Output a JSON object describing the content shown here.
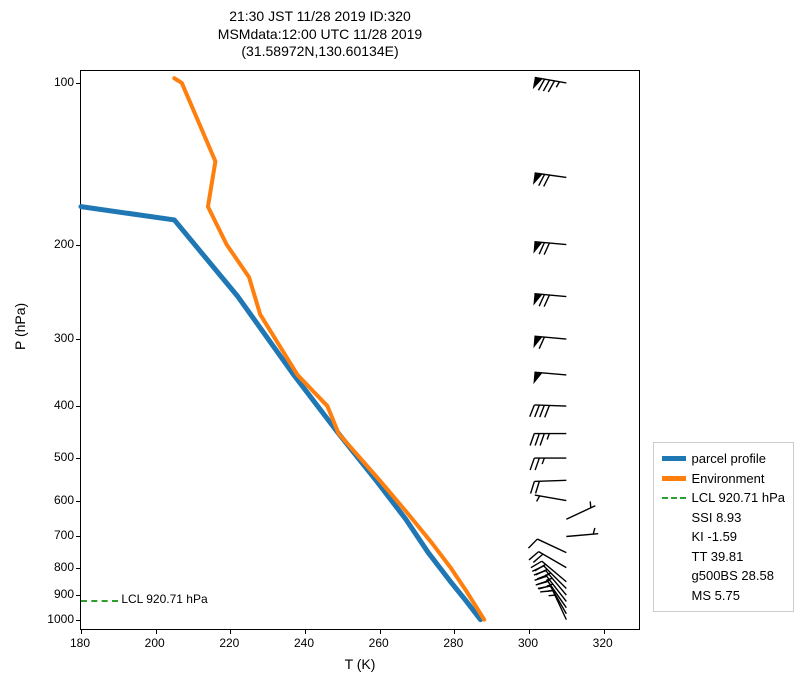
{
  "title": {
    "line1": "21:30 JST 11/28 2019  ID:320",
    "line2": "MSMdata:12:00 UTC 11/28 2019",
    "line3": "(31.58972N,130.60134E)"
  },
  "axes": {
    "xlabel": "T (K)",
    "ylabel": "P (hPa)",
    "xlim": [
      180,
      330
    ],
    "ylim": [
      1050,
      95
    ],
    "xticks": [
      180,
      200,
      220,
      240,
      260,
      280,
      300,
      320
    ],
    "yticks": [
      100,
      200,
      300,
      400,
      500,
      600,
      700,
      800,
      900,
      1000
    ],
    "yscale": "log"
  },
  "colors": {
    "parcel": "#1f77b4",
    "environment": "#ff7f0e",
    "lcl": "#2ca02c",
    "text": "#000000",
    "background": "#ffffff",
    "legend_border": "#cccccc",
    "axis": "#000000",
    "barb": "#000000"
  },
  "line_widths": {
    "parcel": 5,
    "environment": 4,
    "lcl": 2
  },
  "series": {
    "parcel": {
      "t": [
        287,
        283,
        279,
        273,
        267,
        259,
        249,
        237,
        222,
        205,
        180
      ],
      "p": [
        1000,
        920,
        850,
        750,
        650,
        550,
        450,
        350,
        250,
        180,
        170
      ]
    },
    "environment": {
      "t": [
        288,
        286,
        283,
        279,
        274,
        268,
        260,
        249,
        246,
        238,
        228,
        225,
        219,
        214,
        216,
        207,
        205
      ],
      "p": [
        1000,
        950,
        880,
        800,
        720,
        640,
        550,
        450,
        400,
        350,
        270,
        230,
        200,
        170,
        140,
        100,
        98
      ]
    }
  },
  "lcl": {
    "pressure": 920.71,
    "label": "LCL 920.71 hPa",
    "xrange": [
      180,
      190
    ]
  },
  "legend": {
    "items": [
      {
        "kind": "line",
        "color": "#1f77b4",
        "thick": true,
        "label": "parcel profile"
      },
      {
        "kind": "line",
        "color": "#ff7f0e",
        "thick": true,
        "label": "Environment"
      },
      {
        "kind": "dashed",
        "color": "#2ca02c",
        "label": "LCL 920.71 hPa"
      },
      {
        "kind": "text",
        "label": "SSI 8.93"
      },
      {
        "kind": "text",
        "label": "KI -1.59"
      },
      {
        "kind": "text",
        "label": "TT 39.81"
      },
      {
        "kind": "text",
        "label": "g500BS 28.58"
      },
      {
        "kind": "text",
        "label": "MS 5.75"
      }
    ]
  },
  "wind_barbs": {
    "x": 310,
    "levels": [
      {
        "p": 1000,
        "dir": 335,
        "spd": 13
      },
      {
        "p": 975,
        "dir": 330,
        "spd": 17
      },
      {
        "p": 950,
        "dir": 325,
        "spd": 21
      },
      {
        "p": 925,
        "dir": 322,
        "spd": 24
      },
      {
        "p": 900,
        "dir": 320,
        "spd": 27
      },
      {
        "p": 875,
        "dir": 315,
        "spd": 26
      },
      {
        "p": 850,
        "dir": 310,
        "spd": 22
      },
      {
        "p": 800,
        "dir": 300,
        "spd": 18
      },
      {
        "p": 750,
        "dir": 295,
        "spd": 11
      },
      {
        "p": 700,
        "dir": 85,
        "spd": 4
      },
      {
        "p": 650,
        "dir": 65,
        "spd": 7
      },
      {
        "p": 600,
        "dir": 280,
        "spd": 6
      },
      {
        "p": 550,
        "dir": 268,
        "spd": 20
      },
      {
        "p": 500,
        "dir": 270,
        "spd": 27
      },
      {
        "p": 450,
        "dir": 270,
        "spd": 35
      },
      {
        "p": 400,
        "dir": 272,
        "spd": 42
      },
      {
        "p": 350,
        "dir": 275,
        "spd": 50
      },
      {
        "p": 300,
        "dir": 275,
        "spd": 60
      },
      {
        "p": 250,
        "dir": 275,
        "spd": 68
      },
      {
        "p": 200,
        "dir": 275,
        "spd": 70
      },
      {
        "p": 150,
        "dir": 278,
        "spd": 68
      },
      {
        "p": 100,
        "dir": 280,
        "spd": 85
      }
    ],
    "shaft_len": 32,
    "barb_len": 12,
    "barb_spacing": 5
  },
  "fontsize": {
    "title": 14,
    "label": 14,
    "tick": 12,
    "legend": 13,
    "annotation": 12
  }
}
